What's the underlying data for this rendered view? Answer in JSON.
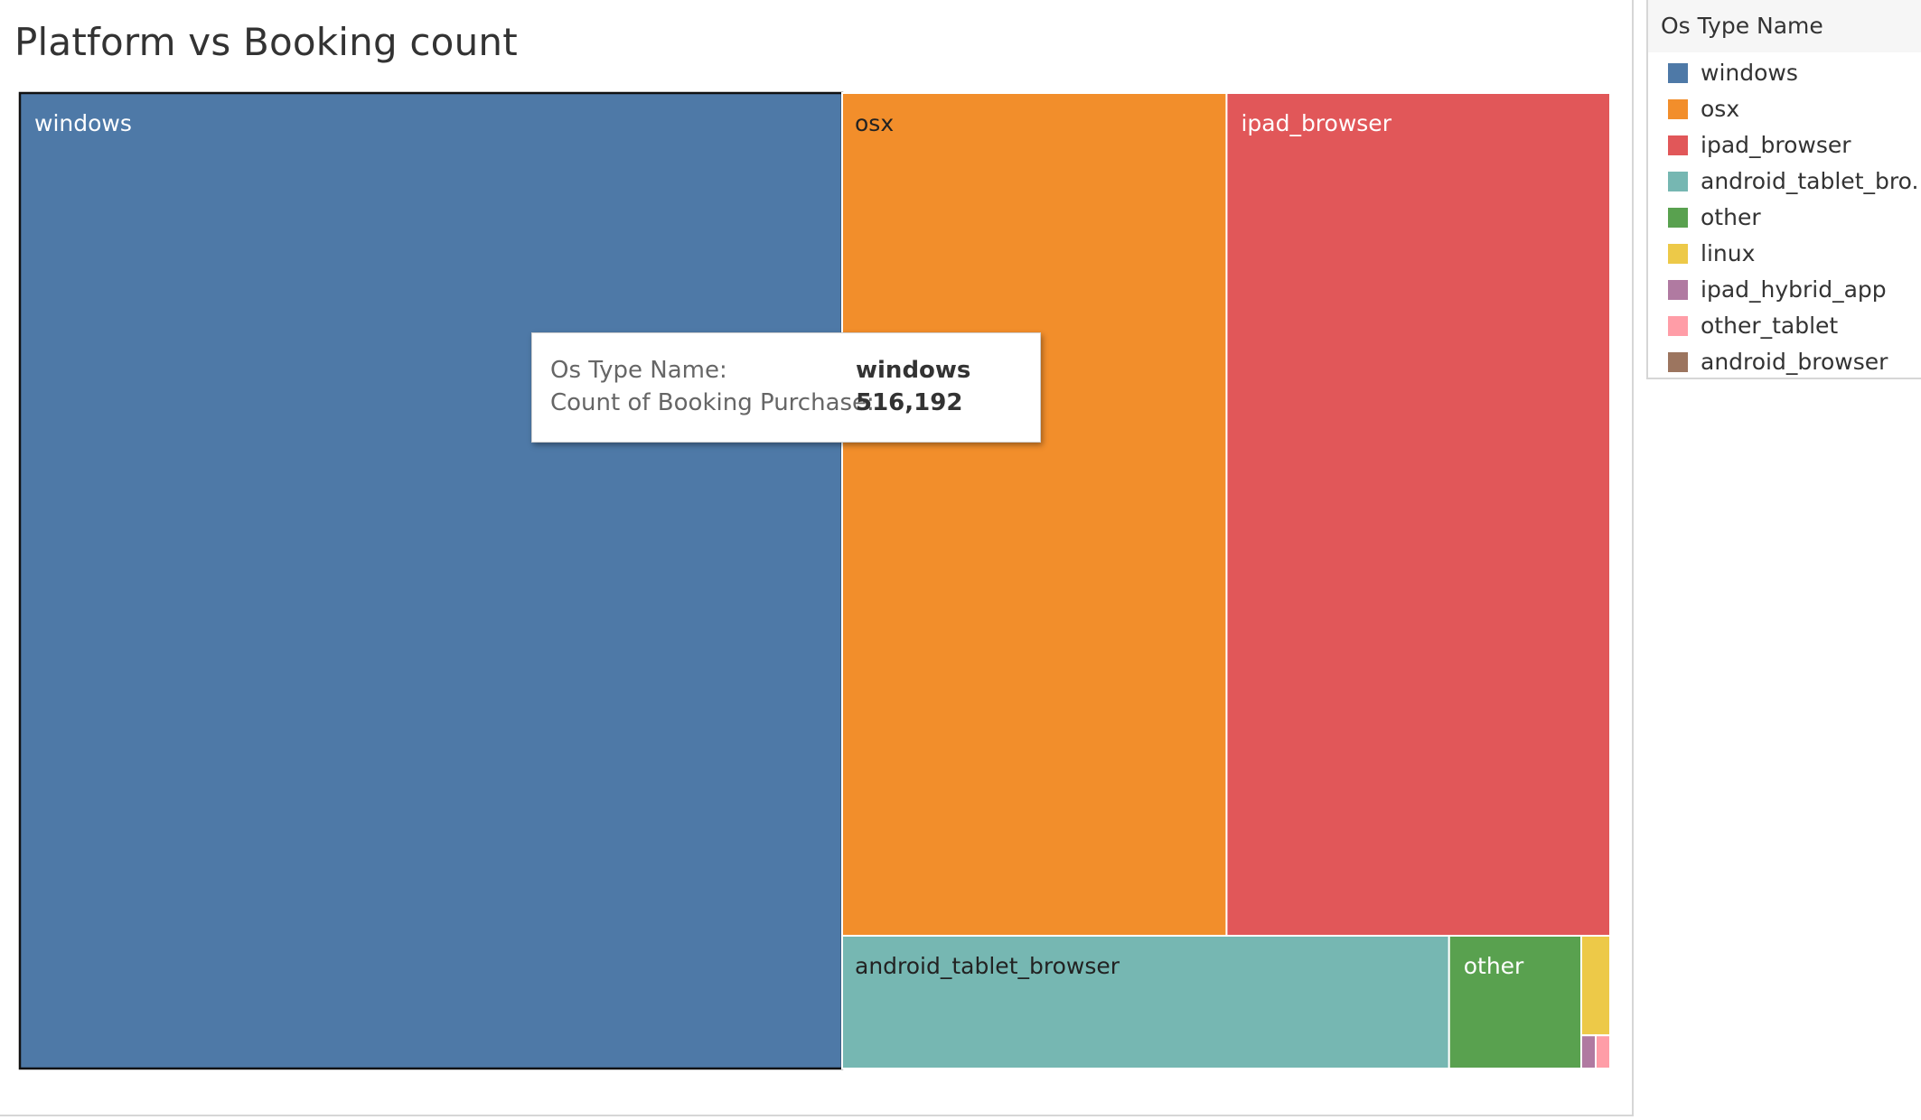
{
  "chart_data": {
    "type": "treemap",
    "title": "Platform vs Booking count",
    "measure": "Count of Booking Purchase",
    "dimension": "Os Type Name",
    "items": [
      {
        "name": "windows",
        "value": 516192,
        "color": "#4E79A7"
      },
      {
        "name": "osx",
        "value": 242000,
        "color": "#F28E2B"
      },
      {
        "name": "ipad_browser",
        "value": 241500,
        "color": "#E15759"
      },
      {
        "name": "android_tablet_browser",
        "value": 62000,
        "color": "#76B7B2"
      },
      {
        "name": "other",
        "value": 13500,
        "color": "#59A14F"
      },
      {
        "name": "linux",
        "value": 2400,
        "color": "#EDC948"
      },
      {
        "name": "ipad_hybrid_app",
        "value": 400,
        "color": "#B07AA1"
      },
      {
        "name": "other_tablet",
        "value": 400,
        "color": "#FF9DA7"
      },
      {
        "name": "android_browser",
        "value": 0,
        "color": "#9C755F"
      }
    ],
    "highlighted": "windows"
  },
  "legend": {
    "title": "Os Type Name",
    "items": [
      {
        "label": "windows",
        "color": "#4E79A7"
      },
      {
        "label": "osx",
        "color": "#F28E2B"
      },
      {
        "label": "ipad_browser",
        "color": "#E15759"
      },
      {
        "label": "android_tablet_bro..",
        "color": "#76B7B2"
      },
      {
        "label": "other",
        "color": "#59A14F"
      },
      {
        "label": "linux",
        "color": "#EDC948"
      },
      {
        "label": "ipad_hybrid_app",
        "color": "#B07AA1"
      },
      {
        "label": "other_tablet",
        "color": "#FF9DA7"
      },
      {
        "label": "android_browser",
        "color": "#9C755F"
      }
    ]
  },
  "tooltip": {
    "rows": [
      {
        "key": "Os Type Name:",
        "value": "windows"
      },
      {
        "key": "Count of Booking Purchase:",
        "value": "516,192"
      }
    ]
  }
}
